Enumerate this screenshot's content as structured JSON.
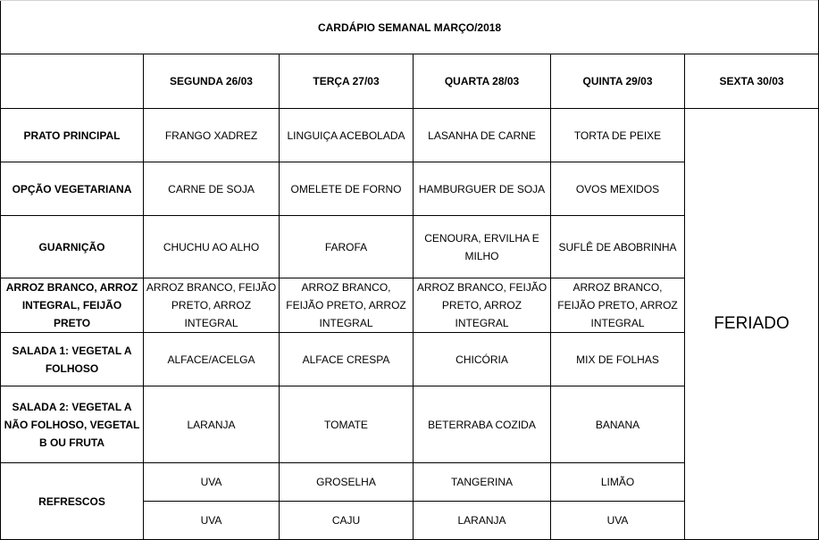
{
  "title": "CARDÁPIO SEMANAL MARÇO/2018",
  "days": [
    "SEGUNDA   26/03",
    "TERÇA 27/03",
    "QUARTA 28/03",
    "QUINTA 29/03",
    "SEXTA 30/03"
  ],
  "holiday": "FERIADO",
  "rows": [
    {
      "label": "PRATO PRINCIPAL",
      "cells": [
        "FRANGO XADREZ",
        "LINGUIÇA ACEBOLADA",
        "LASANHA DE CARNE",
        "TORTA DE PEIXE"
      ]
    },
    {
      "label": "OPÇÃO VEGETARIANA",
      "cells": [
        "CARNE DE SOJA",
        "OMELETE DE FORNO",
        "HAMBURGUER DE SOJA",
        "OVOS MEXIDOS"
      ]
    },
    {
      "label": "GUARNIÇÃO",
      "cells": [
        "CHUCHU AO ALHO",
        "FAROFA",
        "CENOURA, ERVILHA E MILHO",
        "SUFLÊ DE ABOBRINHA"
      ]
    },
    {
      "label": "ARROZ BRANCO, ARROZ INTEGRAL, FEIJÃO PRETO",
      "cells": [
        "ARROZ BRANCO, FEIJÃO PRETO, ARROZ INTEGRAL",
        "ARROZ BRANCO, FEIJÃO PRETO, ARROZ INTEGRAL",
        "ARROZ BRANCO, FEIJÃO PRETO, ARROZ INTEGRAL",
        "ARROZ BRANCO, FEIJÃO PRETO, ARROZ INTEGRAL"
      ]
    },
    {
      "label": "SALADA 1: VEGETAL A FOLHOSO",
      "cells": [
        "ALFACE/ACELGA",
        "ALFACE CRESPA",
        "CHICÓRIA",
        "MIX DE FOLHAS"
      ]
    },
    {
      "label": "SALADA 2: VEGETAL A NÃO FOLHOSO, VEGETAL B OU FRUTA",
      "cells": [
        "LARANJA",
        "TOMATE",
        "BETERRABA COZIDA",
        "BANANA"
      ]
    }
  ],
  "refrescos": {
    "label": "REFRESCOS",
    "row1": [
      "UVA",
      "GROSELHA",
      "TANGERINA",
      "LIMÃO"
    ],
    "row2": [
      "UVA",
      "CAJU",
      "LARANJA",
      "UVA"
    ]
  }
}
